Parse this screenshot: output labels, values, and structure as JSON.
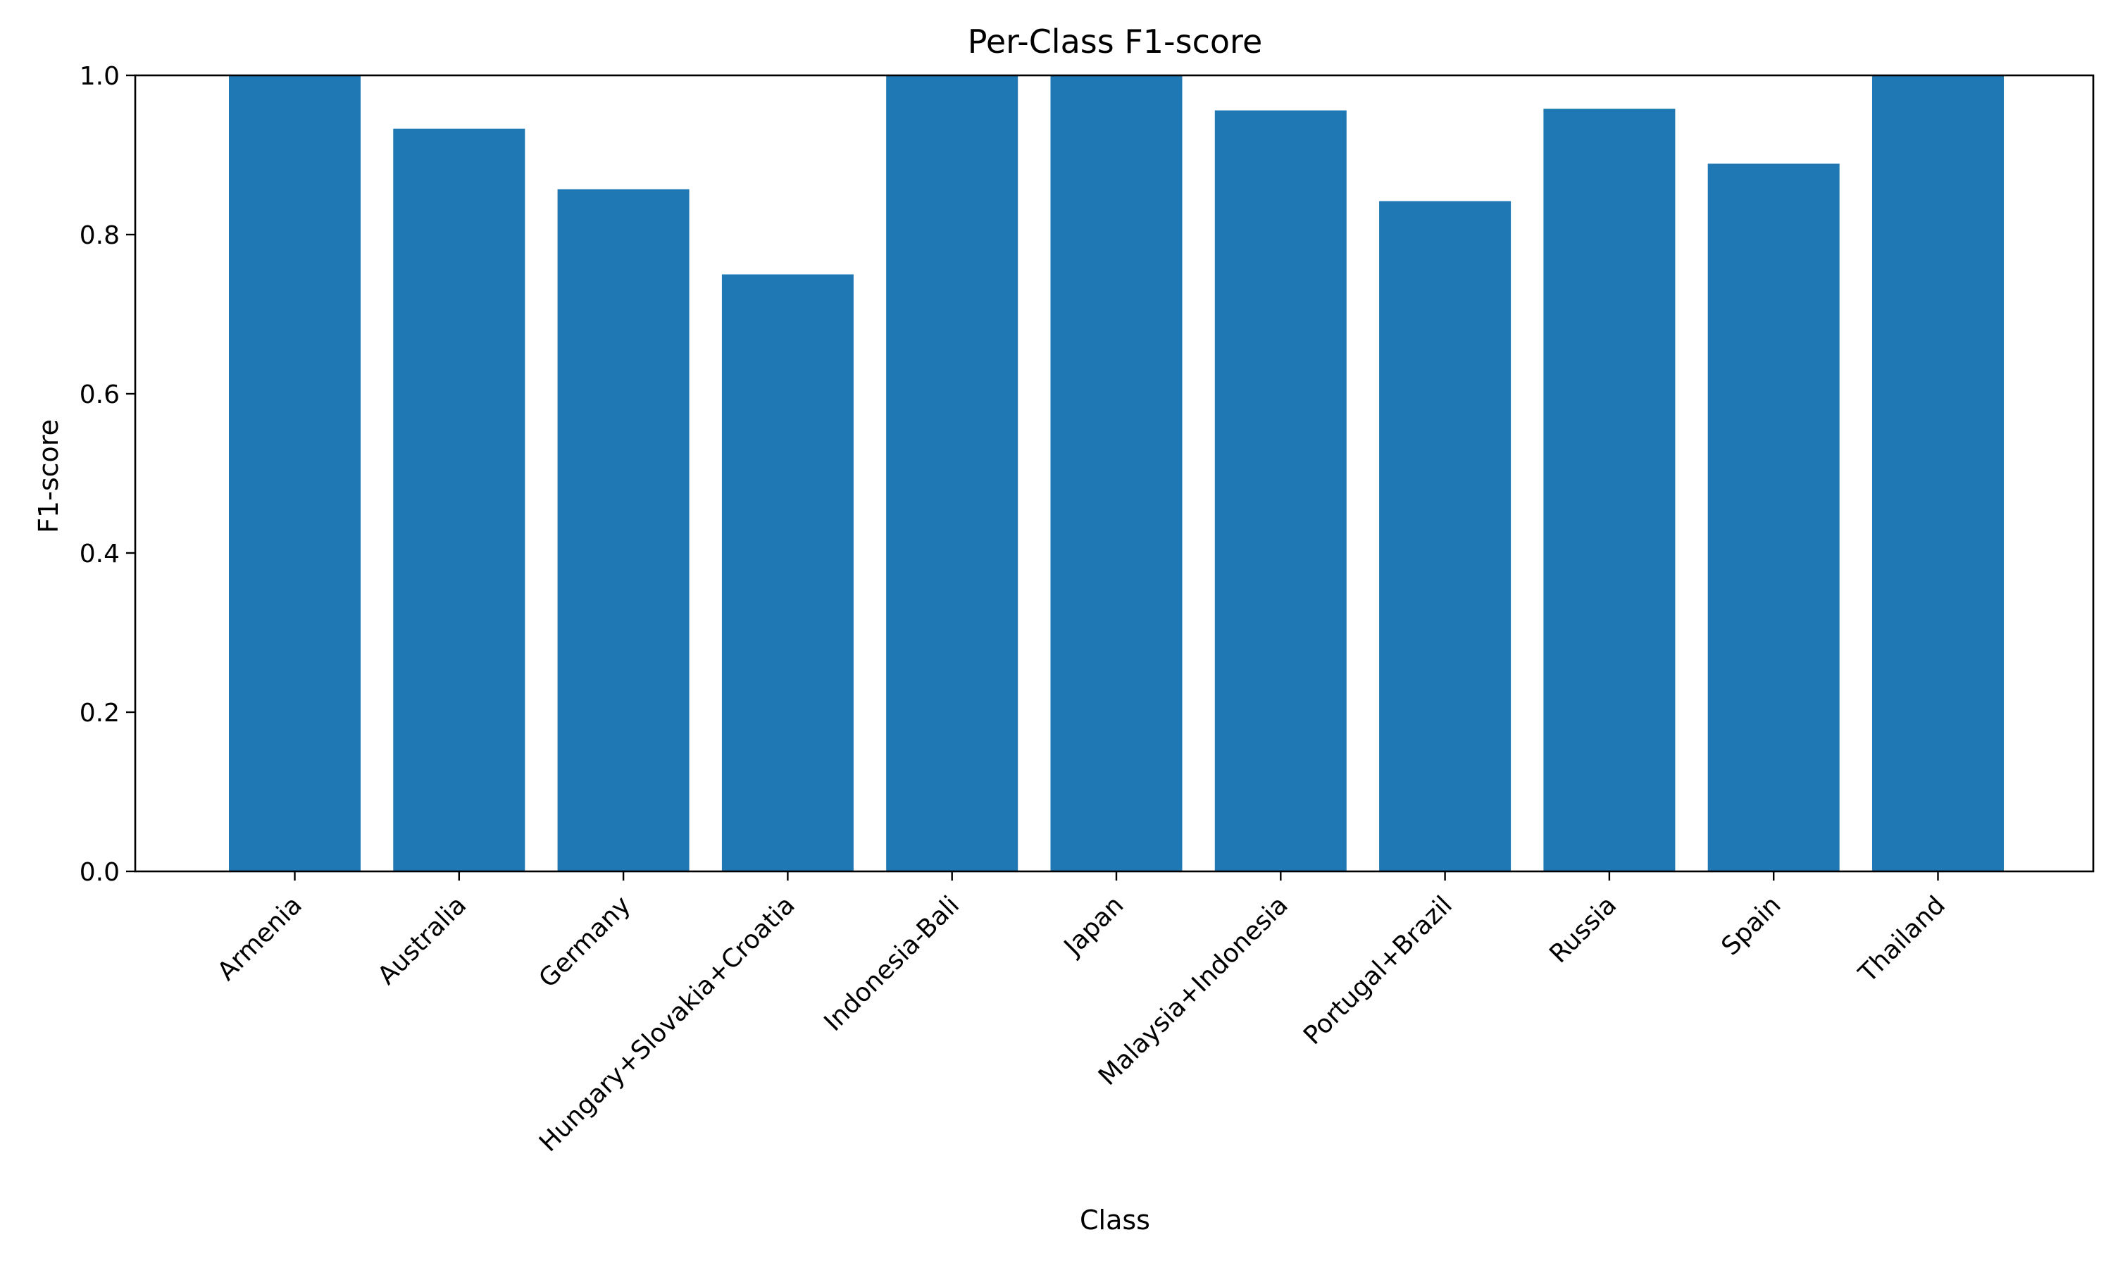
{
  "chart_data": {
    "type": "bar",
    "title": "Per-Class F1-score",
    "xlabel": "Class",
    "ylabel": "F1-score",
    "ylim": [
      0,
      1.0
    ],
    "yticks": [
      "0.0",
      "0.2",
      "0.4",
      "0.6",
      "0.8",
      "1.0"
    ],
    "grid": false,
    "legend": "none",
    "bar_color": "#1f77b4",
    "categories": [
      "Armenia",
      "Australia",
      "Germany",
      "Hungary+Slovakia+Croatia",
      "Indonesia-Bali",
      "Japan",
      "Malaysia+Indonesia",
      "Portugal+Brazil",
      "Russia",
      "Spain",
      "Thailand"
    ],
    "values": [
      1.0,
      0.933,
      0.857,
      0.75,
      1.0,
      1.0,
      0.956,
      0.842,
      0.958,
      0.889,
      1.0
    ]
  }
}
